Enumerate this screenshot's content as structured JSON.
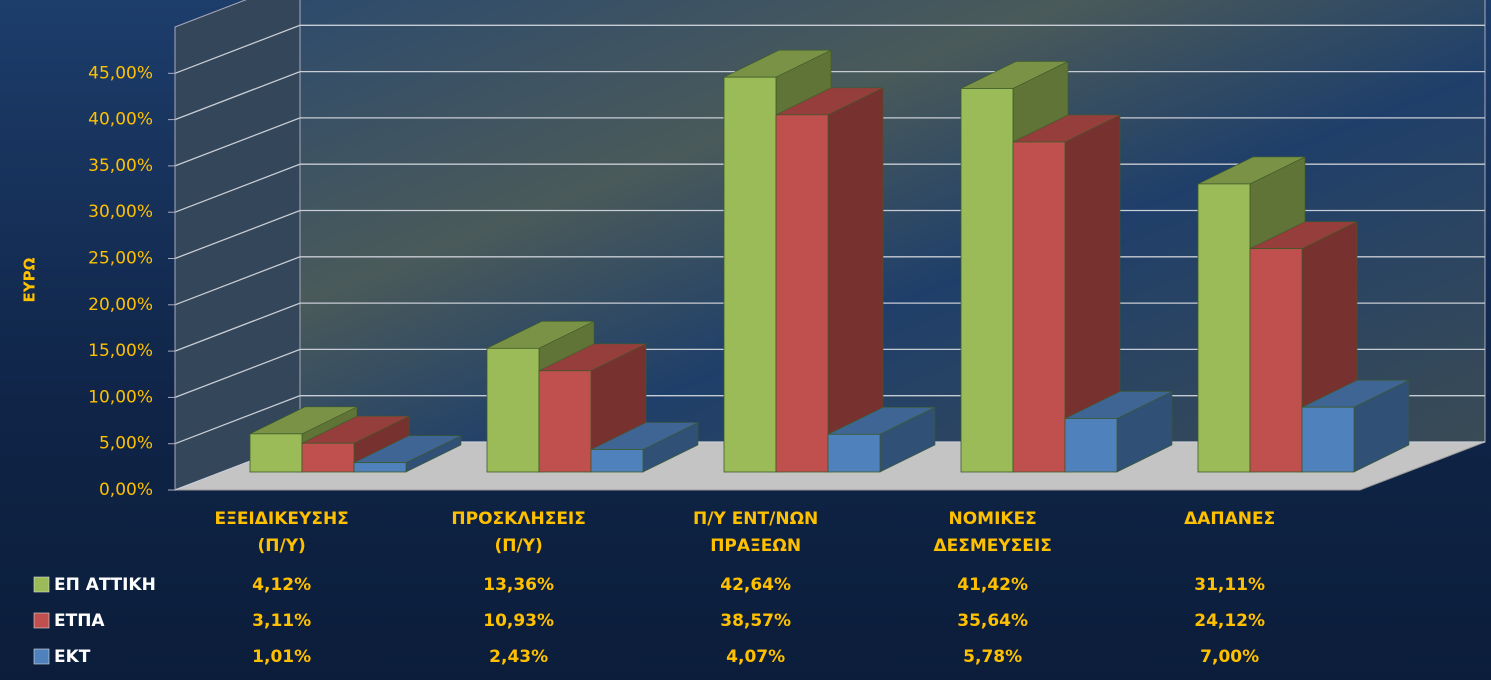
{
  "chart_data": {
    "type": "bar3d",
    "y_axis_label": "ΕΥΡΩ",
    "categories": [
      "ΕΞΕΙΔΙΚΕΥΣΗΣ\n(Π/Υ)",
      "ΠΡΟΣΚΛΗΣΕΙΣ\n(Π/Υ)",
      "Π/Υ ΕΝΤ/ΝΩΝ\nΠΡΑΞΕΩΝ",
      "ΝΟΜΙΚΕΣ\nΔΕΣΜΕΥΣΕΙΣ",
      "ΔΑΠΑΝΕΣ"
    ],
    "series": [
      {
        "name": "ΕΠ ΑΤΤΙΚΗ",
        "color": "#9bbb59",
        "values": [
          4.12,
          13.36,
          42.64,
          41.42,
          31.11
        ],
        "value_labels": [
          "4,12%",
          "13,36%",
          "42,64%",
          "41,42%",
          "31,11%"
        ]
      },
      {
        "name": "ΕΤΠΑ",
        "color": "#c0504d",
        "values": [
          3.11,
          10.93,
          38.57,
          35.64,
          24.12
        ],
        "value_labels": [
          "3,11%",
          "10,93%",
          "38,57%",
          "35,64%",
          "24,12%"
        ]
      },
      {
        "name": "ΕΚΤ",
        "color": "#4f81bd",
        "values": [
          1.01,
          2.43,
          4.07,
          5.78,
          7.0
        ],
        "value_labels": [
          "1,01%",
          "2,43%",
          "4,07%",
          "5,78%",
          "7,00%"
        ]
      }
    ],
    "ylim": [
      0,
      50
    ],
    "yticks": [
      {
        "value": 0,
        "label": "0,00%"
      },
      {
        "value": 5,
        "label": "5,00%"
      },
      {
        "value": 10,
        "label": "10,00%"
      },
      {
        "value": 15,
        "label": "15,00%"
      },
      {
        "value": 20,
        "label": "20,00%"
      },
      {
        "value": 25,
        "label": "25,00%"
      },
      {
        "value": 30,
        "label": "30,00%"
      },
      {
        "value": 35,
        "label": "35,00%"
      },
      {
        "value": 40,
        "label": "40,00%"
      },
      {
        "value": 45,
        "label": "45,00%"
      }
    ],
    "grid": true
  }
}
